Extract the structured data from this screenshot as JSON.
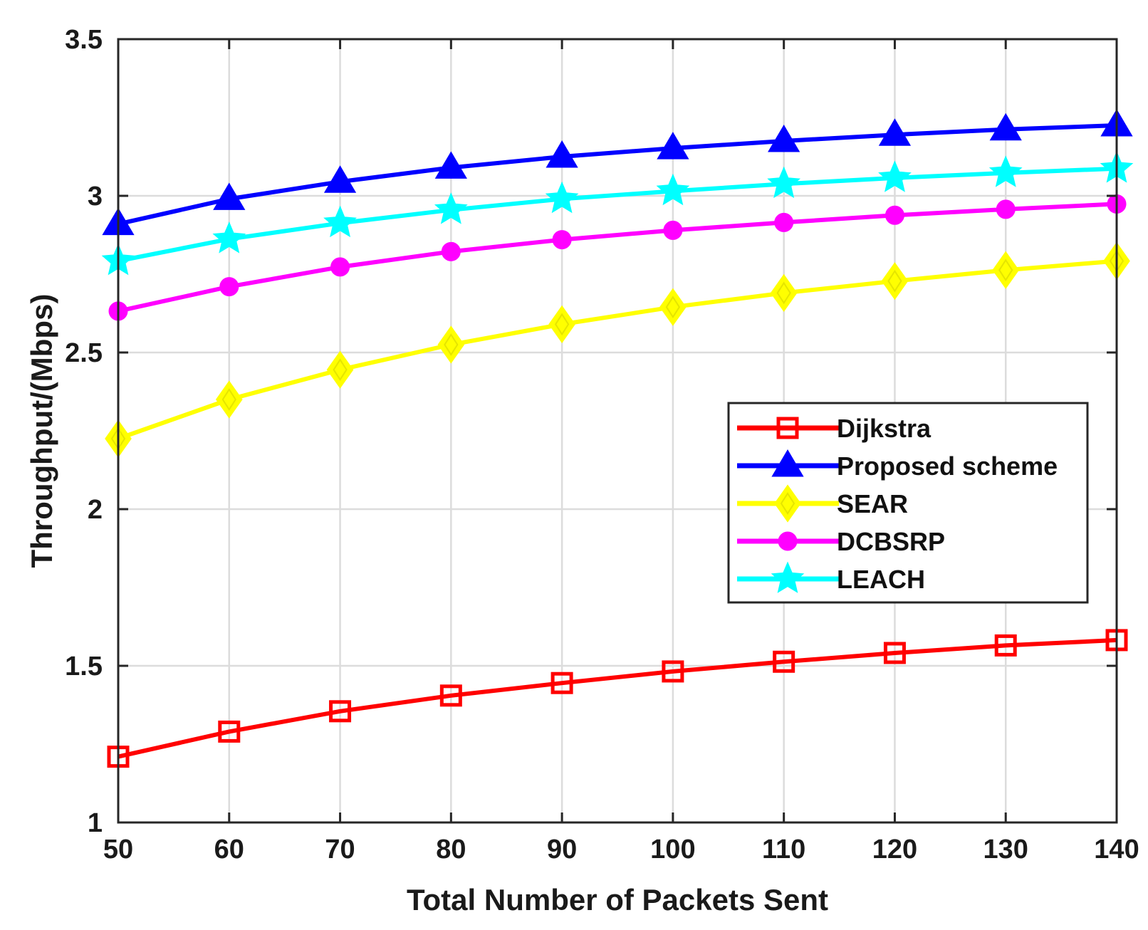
{
  "chart_data": {
    "type": "line",
    "title": "",
    "xlabel": "Total Number of Packets Sent",
    "ylabel": "Throughput/(Mbps)",
    "x": [
      50,
      60,
      70,
      80,
      90,
      100,
      110,
      120,
      130,
      140
    ],
    "xlim": [
      50,
      140
    ],
    "ylim": [
      1,
      3.5
    ],
    "xticks": [
      50,
      60,
      70,
      80,
      90,
      100,
      110,
      120,
      130,
      140
    ],
    "yticks": [
      1,
      1.5,
      2,
      2.5,
      3,
      3.5
    ],
    "xtick_labels": [
      "50",
      "60",
      "70",
      "80",
      "90",
      "100",
      "110",
      "120",
      "130",
      "140"
    ],
    "ytick_labels": [
      "1",
      "1.5",
      "2",
      "2.5",
      "3",
      "3.5"
    ],
    "grid": true,
    "legend_position": "center-right",
    "series": [
      {
        "name": "Dijkstra",
        "color": "#ff0000",
        "marker": "square",
        "values": [
          1.21,
          1.29,
          1.355,
          1.405,
          1.445,
          1.482,
          1.513,
          1.541,
          1.565,
          1.582
        ]
      },
      {
        "name": "Proposed scheme",
        "color": "#0000ff",
        "marker": "triangle",
        "values": [
          2.91,
          2.99,
          3.045,
          3.09,
          3.125,
          3.152,
          3.175,
          3.195,
          3.212,
          3.225
        ]
      },
      {
        "name": "SEAR",
        "color": "#ffff00",
        "marker": "diamond",
        "values": [
          2.225,
          2.35,
          2.445,
          2.525,
          2.59,
          2.645,
          2.69,
          2.728,
          2.763,
          2.792
        ]
      },
      {
        "name": "DCBSRP",
        "color": "#ff00ff",
        "marker": "circle",
        "values": [
          2.632,
          2.71,
          2.773,
          2.822,
          2.86,
          2.89,
          2.915,
          2.938,
          2.957,
          2.974
        ]
      },
      {
        "name": "LEACH",
        "color": "#00ffff",
        "marker": "star",
        "values": [
          2.792,
          2.862,
          2.913,
          2.955,
          2.99,
          3.015,
          3.038,
          3.057,
          3.073,
          3.087
        ]
      }
    ]
  }
}
